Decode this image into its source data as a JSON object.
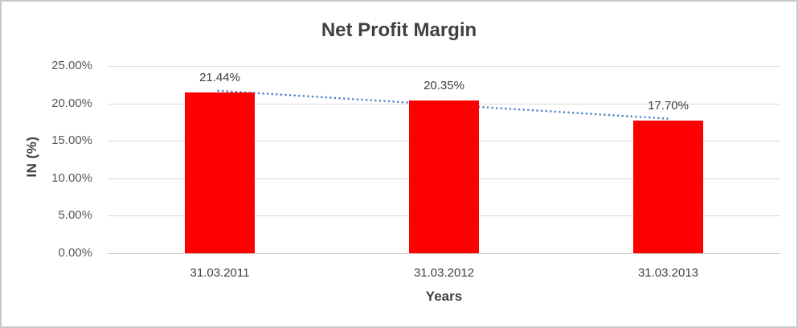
{
  "chart_data": {
    "type": "bar",
    "title": "Net Profit Margin",
    "categories": [
      "31.03.2011",
      "31.03.2012",
      "31.03.2013"
    ],
    "values": [
      21.44,
      20.35,
      17.7
    ],
    "data_labels": [
      "21.44%",
      "20.35%",
      "17.70%"
    ],
    "xlabel": "Years",
    "ylabel": "IN (%)",
    "ylim": [
      0,
      25
    ],
    "ytick_labels": [
      "0.00%",
      "5.00%",
      "10.00%",
      "15.00%",
      "20.00%",
      "25.00%"
    ],
    "grid": true,
    "legend": false,
    "bar_color": "#ff0000",
    "trendline": {
      "type": "linear",
      "style": "dotted",
      "color": "#4a86c8",
      "endpoint_values": [
        21.7,
        17.96
      ]
    }
  },
  "colors": {
    "title_text": "#404040",
    "axis_text": "#595959",
    "gridline": "#d9d9d9",
    "axis_line": "#c9c9c9",
    "border": "#c8c8c8",
    "background": "#ffffff"
  }
}
